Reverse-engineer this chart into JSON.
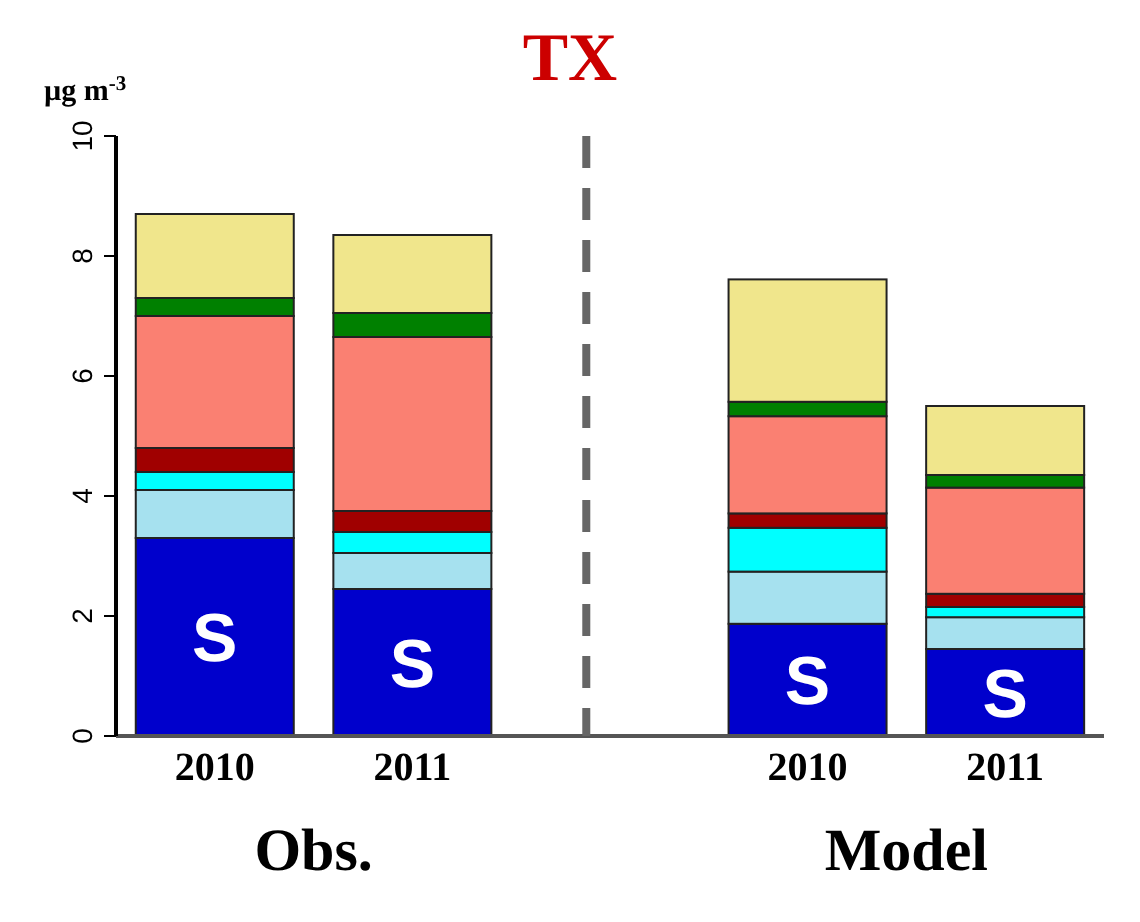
{
  "chart_data": {
    "type": "bar",
    "title": "TX",
    "ylabel": "µg m$^{-3}$",
    "stacked": true,
    "categories": [
      "2010",
      "2011",
      null,
      "2010",
      "2011"
    ],
    "series": [
      {
        "color": "#0000cc",
        "values": [
          3.3,
          2.45,
          null,
          1.87,
          1.45
        ],
        "value_labels": [
          "S",
          "S",
          null,
          "S",
          "S"
        ]
      },
      {
        "color": "#a6e1ef",
        "values": [
          0.8,
          0.6,
          null,
          0.87,
          0.53
        ]
      },
      {
        "color": "#00ffff",
        "values": [
          0.3,
          0.35,
          null,
          0.73,
          0.17
        ]
      },
      {
        "color": "#a00000",
        "values": [
          0.4,
          0.35,
          null,
          0.24,
          0.22
        ]
      },
      {
        "color": "#fa8072",
        "values": [
          2.2,
          2.9,
          null,
          1.62,
          1.77
        ]
      },
      {
        "color": "#008000",
        "values": [
          0.3,
          0.4,
          null,
          0.24,
          0.21
        ]
      },
      {
        "color": "#f0e68c",
        "values": [
          1.4,
          1.3,
          null,
          2.04,
          1.15
        ]
      }
    ],
    "ylim": [
      0,
      10
    ],
    "yticks": [
      0,
      2,
      4,
      6,
      8,
      10
    ],
    "grid": false,
    "legend": false,
    "annotations": [
      "Obs.",
      "Model"
    ]
  }
}
